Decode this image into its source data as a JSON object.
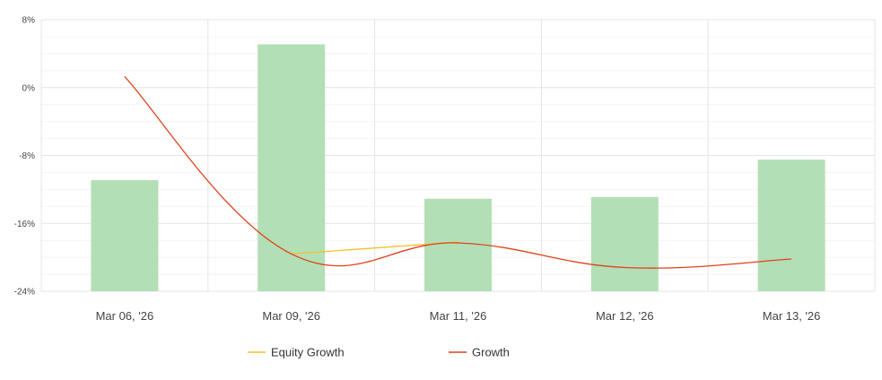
{
  "chart_data": {
    "type": "bar",
    "categories": [
      "Mar 06, '26",
      "Mar 09, '26",
      "Mar 11, '26",
      "Mar 12, '26",
      "Mar 13, '26"
    ],
    "y_ticks": [
      "8%",
      "0%",
      "-8%",
      "-16%",
      "-24%"
    ],
    "ylim": [
      -24,
      8
    ],
    "grid": true,
    "legend_position": "bottom",
    "bars": {
      "values": [
        -10.9,
        5.1,
        -13.1,
        -12.9,
        -8.5
      ],
      "color": "#b3dfb6"
    },
    "series": [
      {
        "name": "Equity Growth",
        "type": "line",
        "color": "#f2c12e",
        "values": [
          null,
          -19.6,
          -18.2,
          null,
          null
        ]
      },
      {
        "name": "Growth",
        "type": "line",
        "color": "#e0421b",
        "values": [
          1.3,
          -19.6,
          -18.3,
          -21.2,
          -20.2
        ]
      }
    ]
  }
}
